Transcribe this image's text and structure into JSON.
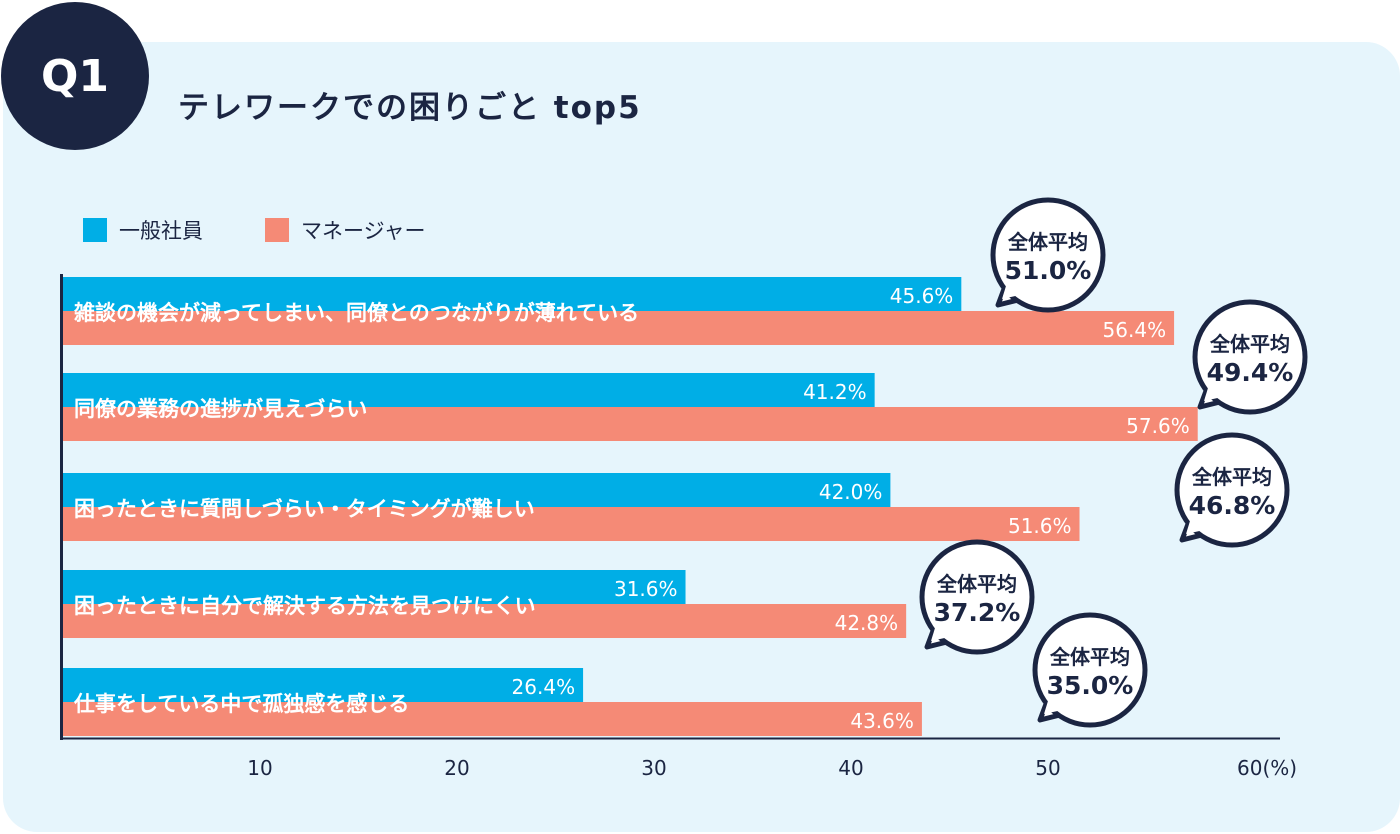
{
  "badge": "Q1",
  "title": "テレワークでの困りごと top5",
  "chart_data": {
    "type": "bar",
    "orientation": "horizontal",
    "title": "テレワークでの困りごと top5",
    "categories": [
      "雑談の機会が減ってしまい、同僚とのつながりが薄れている",
      "同僚の業務の進捗が見えづらい",
      "困ったときに質問しづらい・タイミングが難しい",
      "困ったときに自分で解決する方法を見つけにくい",
      "仕事をしている中で孤独感を感じる"
    ],
    "series": [
      {
        "name": "一般社員",
        "color": "#00aee6",
        "values": [
          45.6,
          41.2,
          42.0,
          31.6,
          26.4
        ],
        "labels": [
          "45.6%",
          "41.2%",
          "42.0%",
          "31.6%",
          "26.4%"
        ]
      },
      {
        "name": "マネージャー",
        "color": "#f58a76",
        "values": [
          56.4,
          57.6,
          51.6,
          42.8,
          43.6
        ],
        "labels": [
          "56.4%",
          "57.6%",
          "51.6%",
          "42.8%",
          "43.6%"
        ]
      }
    ],
    "overall_average": {
      "label": "全体平均",
      "values": [
        "51.0%",
        "49.4%",
        "46.8%",
        "37.2%",
        "35.0%"
      ]
    },
    "xticks": [
      "10",
      "20",
      "30",
      "40",
      "50",
      "60(%)"
    ],
    "xlim": [
      0,
      60
    ],
    "legend": "top-left",
    "grid": false
  }
}
